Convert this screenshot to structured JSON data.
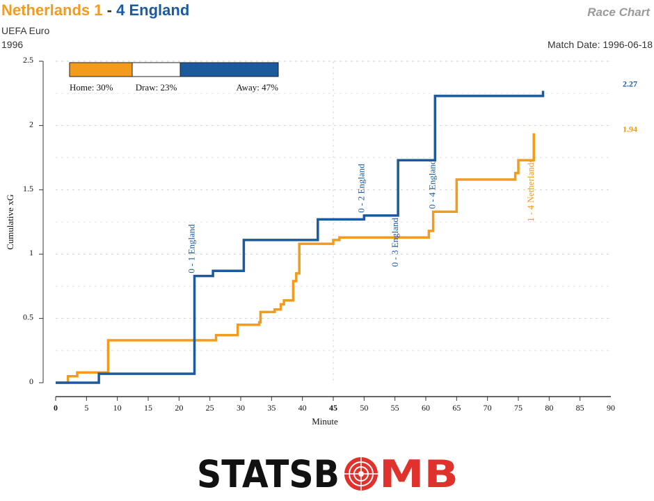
{
  "header": {
    "home_team": "Netherlands",
    "home_score": "1",
    "separator": "-",
    "away_score": "4",
    "away_team": "England",
    "competition": "UEFA Euro",
    "season": "1996",
    "chart_label": "Race Chart",
    "match_date_label": "Match Date:",
    "match_date": "1996-06-18"
  },
  "colors": {
    "home": "#f39b1c",
    "away": "#1b5a9c",
    "draw": "#ffffff"
  },
  "prob_bar": {
    "home_label": "Home: 30%",
    "draw_label": "Draw: 23%",
    "away_label": "Away: 47%",
    "home": 0.3,
    "draw": 0.23,
    "away": 0.47
  },
  "branding": {
    "logo_text_left": "STATSB",
    "logo_text_right": "MB",
    "logo_icon": "target-icon"
  },
  "chart_data": {
    "type": "line",
    "xlabel": "Minute",
    "ylabel": "Cumulative xG",
    "xlim": [
      0,
      90
    ],
    "ylim": [
      0,
      2.5
    ],
    "x_ticks": [
      "0",
      "5",
      "10",
      "15",
      "20",
      "25",
      "30",
      "35",
      "40",
      "45",
      "50",
      "55",
      "60",
      "65",
      "70",
      "75",
      "80",
      "85",
      "90"
    ],
    "y_ticks": [
      "0",
      "0.5",
      "1",
      "1.5",
      "2",
      "2.5"
    ],
    "step": true,
    "series": [
      {
        "name": "Netherlands",
        "side": "home",
        "final_label": "1.94",
        "points": [
          [
            0,
            0
          ],
          [
            2,
            0
          ],
          [
            2,
            0.05
          ],
          [
            3.5,
            0.05
          ],
          [
            3.5,
            0.08
          ],
          [
            8.5,
            0.08
          ],
          [
            8.5,
            0.33
          ],
          [
            26,
            0.33
          ],
          [
            26,
            0.37
          ],
          [
            29.5,
            0.37
          ],
          [
            29.5,
            0.45
          ],
          [
            33,
            0.45
          ],
          [
            33,
            0.47
          ],
          [
            33.2,
            0.47
          ],
          [
            33.2,
            0.55
          ],
          [
            35.5,
            0.55
          ],
          [
            35.5,
            0.57
          ],
          [
            36.5,
            0.57
          ],
          [
            36.5,
            0.61
          ],
          [
            37,
            0.61
          ],
          [
            37,
            0.64
          ],
          [
            38.5,
            0.64
          ],
          [
            38.5,
            0.79
          ],
          [
            39,
            0.79
          ],
          [
            39,
            0.85
          ],
          [
            39.5,
            0.85
          ],
          [
            39.5,
            1.08
          ],
          [
            45,
            1.08
          ],
          [
            45,
            1.11
          ],
          [
            46,
            1.11
          ],
          [
            46,
            1.13
          ],
          [
            60.5,
            1.13
          ],
          [
            60.5,
            1.18
          ],
          [
            61.2,
            1.18
          ],
          [
            61.2,
            1.33
          ],
          [
            65,
            1.33
          ],
          [
            65,
            1.58
          ],
          [
            74.5,
            1.58
          ],
          [
            74.5,
            1.63
          ],
          [
            75,
            1.63
          ],
          [
            75,
            1.73
          ],
          [
            77.5,
            1.73
          ],
          [
            77.5,
            1.94
          ]
        ]
      },
      {
        "name": "England",
        "side": "away",
        "final_label": "2.27",
        "points": [
          [
            0,
            0
          ],
          [
            7,
            0
          ],
          [
            7,
            0.07
          ],
          [
            22.5,
            0.07
          ],
          [
            22.5,
            0.83
          ],
          [
            25.5,
            0.83
          ],
          [
            25.5,
            0.87
          ],
          [
            30.5,
            0.87
          ],
          [
            30.5,
            1.11
          ],
          [
            42.5,
            1.11
          ],
          [
            42.5,
            1.27
          ],
          [
            50,
            1.27
          ],
          [
            50,
            1.3
          ],
          [
            55.5,
            1.3
          ],
          [
            55.5,
            1.73
          ],
          [
            61.5,
            1.73
          ],
          [
            61.5,
            2.23
          ],
          [
            79,
            2.23
          ],
          [
            79,
            2.27
          ]
        ]
      }
    ],
    "annotations": [
      {
        "text": "0 - 1 England",
        "x": 22.5,
        "y": 0.83,
        "side": "away"
      },
      {
        "text": "0 - 2 England",
        "x": 50,
        "y": 1.3,
        "side": "away"
      },
      {
        "text": "0 - 3 England",
        "x": 55.5,
        "y": 0.88,
        "side": "away"
      },
      {
        "text": "0 - 4 England",
        "x": 61.5,
        "y": 1.33,
        "side": "away"
      },
      {
        "text": "1 - 4 Netherlands",
        "x": 77.5,
        "y": 1.23,
        "side": "home"
      }
    ],
    "grid": true
  }
}
